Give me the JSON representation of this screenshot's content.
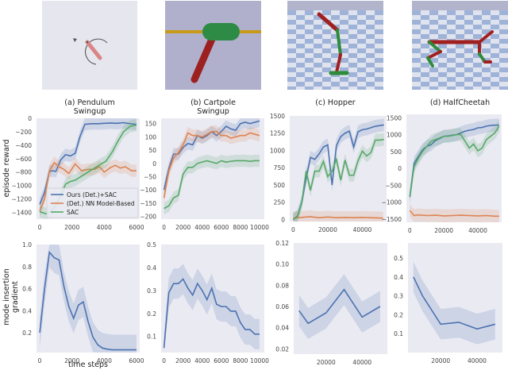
{
  "thumbnails": [
    {
      "label": "(a) Pendulum\nSwingup",
      "scene": "pendulum"
    },
    {
      "label": "(b) Cartpole\nSwingup",
      "scene": "cartpole"
    },
    {
      "label": "(c) Hopper",
      "scene": "hopper"
    },
    {
      "label": "(d) HalfCheetah",
      "scene": "halfcheetah"
    }
  ],
  "colors": {
    "ours": "#4c72b0",
    "nn_model": "#dd8452",
    "sac": "#55a868",
    "plot_bg": "#eaeaf2"
  },
  "axis_labels": {
    "top_row_ylabel": "episode reward",
    "bottom_row_ylabel": "mode insertion\ngradient",
    "xlabel": "time steps"
  },
  "legend": [
    "Ours (Det.)+SAC",
    "(Det.) NN Model-Based",
    "SAC"
  ],
  "chart_data": [
    {
      "type": "line",
      "title": "(a) Pendulum Swingup",
      "ylabel": "episode reward",
      "xlabel": "",
      "xlim": [
        -200,
        6200
      ],
      "ylim": [
        -1500,
        0
      ],
      "xticks": [
        0,
        2000,
        4000,
        6000
      ],
      "yticks": [
        -1400,
        -1200,
        -1000,
        -800,
        -600,
        -400,
        -200,
        0
      ],
      "legend_position": "lower right",
      "series": [
        {
          "name": "Ours (Det.)+SAC",
          "x": [
            0,
            300,
            600,
            800,
            1000,
            1300,
            1600,
            1900,
            2200,
            2500,
            2800,
            3200,
            3600,
            4000,
            4400,
            4800,
            5200,
            5600,
            6000
          ],
          "y": [
            -1280,
            -1100,
            -790,
            -780,
            -790,
            -620,
            -540,
            -560,
            -520,
            -270,
            -90,
            -80,
            -80,
            -75,
            -70,
            -75,
            -65,
            -80,
            -90
          ]
        },
        {
          "name": "(Det.) NN Model-Based",
          "x": [
            0,
            300,
            600,
            900,
            1200,
            1500,
            1800,
            2200,
            2600,
            3000,
            3400,
            3700,
            4000,
            4400,
            4700,
            5000,
            5300,
            5700,
            6000
          ],
          "y": [
            -1380,
            -1200,
            -780,
            -660,
            -720,
            -760,
            -820,
            -680,
            -780,
            -760,
            -760,
            -720,
            -800,
            -730,
            -700,
            -740,
            -720,
            -780,
            -780
          ]
        },
        {
          "name": "SAC",
          "x": [
            0,
            400,
            700,
            1000,
            1300,
            1600,
            1900,
            2200,
            2600,
            3000,
            3400,
            3800,
            4100,
            4500,
            4800,
            5200,
            5600,
            6000
          ],
          "y": [
            -1390,
            -1420,
            -1380,
            -1300,
            -1150,
            -980,
            -940,
            -920,
            -860,
            -800,
            -740,
            -680,
            -640,
            -500,
            -360,
            -200,
            -120,
            -100
          ]
        }
      ]
    },
    {
      "type": "line",
      "title": "(b) Cartpole Swingup",
      "ylabel": "",
      "xlabel": "",
      "xlim": [
        -300,
        10500
      ],
      "ylim": [
        -210,
        170
      ],
      "xticks": [
        0,
        2000,
        4000,
        6000,
        8000,
        10000
      ],
      "yticks": [
        -200,
        -150,
        -100,
        -50,
        0,
        50,
        100,
        150
      ],
      "series": [
        {
          "name": "Ours (Det.)+SAC",
          "x": [
            0,
            500,
            1000,
            1500,
            2000,
            2500,
            3000,
            3500,
            4000,
            4500,
            5000,
            5500,
            6000,
            6500,
            7000,
            7500,
            8000,
            8500,
            9000,
            9500,
            10000
          ],
          "y": [
            -100,
            -20,
            35,
            35,
            60,
            75,
            70,
            105,
            95,
            105,
            120,
            105,
            120,
            140,
            130,
            125,
            150,
            155,
            150,
            155,
            160
          ]
        },
        {
          "name": "(Det.) NN Model-Based",
          "x": [
            0,
            500,
            1000,
            1500,
            2000,
            2500,
            3000,
            3500,
            4000,
            4500,
            5000,
            5500,
            6000,
            6500,
            7000,
            7500,
            8000,
            8500,
            9000,
            9500,
            10000
          ],
          "y": [
            -130,
            -30,
            20,
            40,
            70,
            115,
            105,
            105,
            100,
            110,
            120,
            120,
            105,
            105,
            95,
            100,
            105,
            105,
            115,
            110,
            105
          ]
        },
        {
          "name": "SAC",
          "x": [
            0,
            500,
            1000,
            1500,
            2000,
            2500,
            3000,
            3500,
            4000,
            4500,
            5000,
            5500,
            6000,
            6500,
            7000,
            7500,
            8000,
            8500,
            9000,
            9500,
            10000
          ],
          "y": [
            -170,
            -160,
            -130,
            -120,
            -40,
            -15,
            -15,
            0,
            5,
            10,
            5,
            0,
            10,
            5,
            8,
            10,
            10,
            10,
            8,
            10,
            10
          ]
        }
      ]
    },
    {
      "type": "line",
      "title": "(c) Hopper",
      "ylabel": "",
      "xlabel": "",
      "xlim": [
        -2000,
        54000
      ],
      "ylim": [
        -30,
        1500
      ],
      "xticks": [
        0,
        20000,
        40000
      ],
      "yticks": [
        0,
        250,
        500,
        750,
        1000,
        1250,
        1500
      ],
      "series": [
        {
          "name": "Ours (Det.)+SAC",
          "x": [
            0,
            2500,
            5000,
            7500,
            10000,
            12500,
            15000,
            17500,
            20000,
            22500,
            25000,
            27500,
            30000,
            32500,
            35000,
            37500,
            40000,
            42500,
            45000,
            47500,
            50000,
            52500
          ],
          "y": [
            0,
            50,
            250,
            600,
            900,
            870,
            950,
            1050,
            1080,
            500,
            1070,
            1200,
            1250,
            1280,
            1050,
            1270,
            1300,
            1310,
            1330,
            1350,
            1360,
            1370
          ]
        },
        {
          "name": "(Det.) NN Model-Based",
          "x": [
            0,
            5000,
            10000,
            15000,
            20000,
            25000,
            30000,
            35000,
            40000,
            45000,
            52000
          ],
          "y": [
            20,
            30,
            40,
            25,
            35,
            25,
            30,
            25,
            30,
            25,
            20
          ]
        },
        {
          "name": "SAC",
          "x": [
            0,
            2500,
            5000,
            7500,
            10000,
            12500,
            15000,
            17500,
            20000,
            22500,
            25000,
            27500,
            30000,
            32500,
            35000,
            37500,
            40000,
            42500,
            45000,
            47500,
            50000,
            52500
          ],
          "y": [
            0,
            40,
            250,
            700,
            420,
            700,
            700,
            840,
            620,
            700,
            870,
            570,
            860,
            640,
            640,
            850,
            990,
            920,
            970,
            1150,
            1150,
            1160
          ]
        }
      ]
    },
    {
      "type": "line",
      "title": "(d) HalfCheetah",
      "ylabel": "",
      "xlabel": "",
      "xlim": [
        -2000,
        54000
      ],
      "ylim": [
        -1600,
        1600
      ],
      "xticks": [
        0,
        20000,
        40000
      ],
      "yticks": [
        -1500,
        -1000,
        -500,
        0,
        500,
        1000,
        1500
      ],
      "series": [
        {
          "name": "Ours (Det.)+SAC",
          "x": [
            0,
            2500,
            5000,
            7500,
            10000,
            12500,
            15000,
            17500,
            20000,
            22500,
            25000,
            27500,
            30000,
            32500,
            35000,
            37500,
            40000,
            42500,
            45000,
            47500,
            50000,
            52500
          ],
          "y": [
            -850,
            150,
            350,
            550,
            650,
            700,
            820,
            880,
            950,
            960,
            980,
            1000,
            1050,
            1100,
            1130,
            1150,
            1200,
            1210,
            1250,
            1270,
            1280,
            1280
          ]
        },
        {
          "name": "(Det.) NN Model-Based",
          "x": [
            0,
            2500,
            5000,
            10000,
            15000,
            20000,
            25000,
            30000,
            35000,
            40000,
            45000,
            50000,
            52500
          ],
          "y": [
            -1250,
            -1400,
            -1380,
            -1400,
            -1390,
            -1410,
            -1400,
            -1390,
            -1400,
            -1410,
            -1400,
            -1420,
            -1420
          ]
        },
        {
          "name": "SAC",
          "x": [
            0,
            2500,
            5000,
            7500,
            10000,
            12500,
            15000,
            17500,
            20000,
            22500,
            25000,
            27500,
            30000,
            32500,
            35000,
            37500,
            40000,
            42500,
            45000,
            47500,
            50000,
            52500
          ],
          "y": [
            -850,
            50,
            300,
            500,
            650,
            800,
            850,
            900,
            950,
            950,
            970,
            1000,
            1000,
            800,
            600,
            720,
            520,
            600,
            850,
            950,
            1050,
            1250
          ]
        }
      ]
    },
    {
      "type": "line",
      "title": "",
      "ylabel": "mode insertion gradient",
      "xlabel": "time steps",
      "xlim": [
        -200,
        6200
      ],
      "ylim": [
        0.02,
        1.0
      ],
      "xticks": [
        0,
        2000,
        4000,
        6000
      ],
      "yticks": [
        0.2,
        0.4,
        0.6,
        0.8,
        1.0
      ],
      "series": [
        {
          "name": "Ours (Det.)+SAC",
          "x": [
            0,
            300,
            600,
            900,
            1200,
            1500,
            1800,
            2100,
            2400,
            2700,
            3000,
            3300,
            3600,
            3900,
            4200,
            4500,
            5000,
            5500,
            6000
          ],
          "y": [
            0.2,
            0.6,
            0.93,
            0.88,
            0.86,
            0.62,
            0.44,
            0.33,
            0.45,
            0.48,
            0.3,
            0.16,
            0.09,
            0.06,
            0.05,
            0.045,
            0.045,
            0.045,
            0.045
          ]
        }
      ]
    },
    {
      "type": "line",
      "title": "",
      "ylabel": "",
      "xlabel": "",
      "xlim": [
        -300,
        10500
      ],
      "ylim": [
        0.03,
        0.5
      ],
      "xticks": [
        0,
        2000,
        4000,
        6000,
        8000,
        10000
      ],
      "yticks": [
        0.1,
        0.2,
        0.3,
        0.4,
        0.5
      ],
      "series": [
        {
          "name": "Ours (Det.)+SAC",
          "x": [
            0,
            500,
            1000,
            1500,
            2000,
            2500,
            3000,
            3500,
            4000,
            4500,
            5000,
            5500,
            6000,
            6500,
            7000,
            7500,
            8000,
            8500,
            9000,
            9500,
            10000
          ],
          "y": [
            0.05,
            0.29,
            0.33,
            0.33,
            0.35,
            0.31,
            0.28,
            0.33,
            0.3,
            0.26,
            0.31,
            0.24,
            0.23,
            0.23,
            0.21,
            0.21,
            0.16,
            0.13,
            0.13,
            0.11,
            0.11
          ]
        }
      ]
    },
    {
      "type": "line",
      "title": "",
      "ylabel": "",
      "xlabel": "",
      "xlim": [
        2000,
        54000
      ],
      "ylim": [
        0.015,
        0.12
      ],
      "xticks": [
        20000,
        40000
      ],
      "yticks": [
        0.02,
        0.04,
        0.06,
        0.08,
        0.1,
        0.12
      ],
      "series": [
        {
          "name": "Ours (Det.)+SAC",
          "x": [
            5000,
            10000,
            20000,
            30000,
            40000,
            50000
          ],
          "y": [
            0.056,
            0.044,
            0.054,
            0.076,
            0.05,
            0.06
          ]
        }
      ]
    },
    {
      "type": "line",
      "title": "",
      "ylabel": "",
      "xlabel": "",
      "xlim": [
        2000,
        54000
      ],
      "ylim": [
        0.0,
        0.58
      ],
      "xticks": [
        20000,
        40000
      ],
      "yticks": [
        0.1,
        0.2,
        0.3,
        0.4,
        0.5
      ],
      "series": [
        {
          "name": "Ours (Det.)+SAC",
          "x": [
            5000,
            10000,
            20000,
            30000,
            40000,
            50000
          ],
          "y": [
            0.4,
            0.3,
            0.15,
            0.16,
            0.125,
            0.15
          ]
        }
      ]
    }
  ]
}
